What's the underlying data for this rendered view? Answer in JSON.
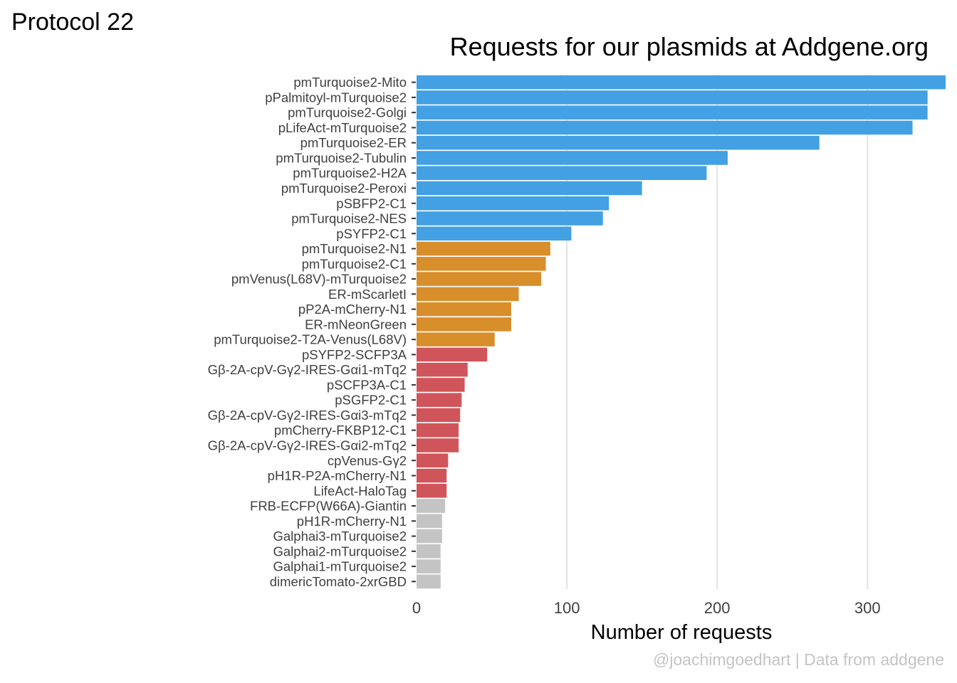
{
  "header": {
    "protocol_label": "Protocol 22"
  },
  "caption": "@joachimgoedhart | Data from addgene",
  "chart_data": {
    "type": "bar",
    "orientation": "horizontal",
    "title": "Requests for our plasmids at Addgene.org",
    "xlabel": "Number of requests",
    "ylabel": "",
    "xlim": [
      0,
      352
    ],
    "xticks": [
      0,
      100,
      200,
      300
    ],
    "grid": "vertical major",
    "legend": "none",
    "categories": [
      "pmTurquoise2-Mito",
      "pPalmitoyl-mTurquoise2",
      "pmTurquoise2-Golgi",
      "pLifeAct-mTurquoise2",
      "pmTurquoise2-ER",
      "pmTurquoise2-Tubulin",
      "pmTurquoise2-H2A",
      "pmTurquoise2-Peroxi",
      "pSBFP2-C1",
      "pmTurquoise2-NES",
      "pSYFP2-C1",
      "pmTurquoise2-N1",
      "pmTurquoise2-C1",
      "pmVenus(L68V)-mTurquoise2",
      "ER-mScarletI",
      "pP2A-mCherry-N1",
      "ER-mNeonGreen",
      "pmTurquoise2-T2A-Venus(L68V)",
      "pSYFP2-SCFP3A",
      "Gβ-2A-cpV-Gγ2-IRES-Gαi1-mTq2",
      "pSCFP3A-C1",
      "pSGFP2-C1",
      "Gβ-2A-cpV-Gγ2-IRES-Gαi3-mTq2",
      "pmCherry-FKBP12-C1",
      "Gβ-2A-cpV-Gγ2-IRES-Gαi2-mTq2",
      "cpVenus-Gγ2",
      "pH1R-P2A-mCherry-N1",
      "LifeAct-HaloTag",
      "FRB-ECFP(W66A)-Giantin",
      "pH1R-mCherry-N1",
      "Galphai3-mTurquoise2",
      "Galphai2-mTurquoise2",
      "Galphai1-mTurquoise2",
      "dimericTomato-2xrGBD"
    ],
    "values": [
      352,
      340,
      340,
      330,
      268,
      207,
      193,
      150,
      128,
      124,
      103,
      89,
      86,
      83,
      68,
      63,
      63,
      52,
      47,
      34,
      32,
      30,
      29,
      28,
      28,
      21,
      20,
      20,
      19,
      17,
      17,
      16,
      16,
      16
    ],
    "groups": [
      1,
      1,
      1,
      1,
      1,
      1,
      1,
      1,
      1,
      1,
      1,
      2,
      2,
      2,
      2,
      2,
      2,
      2,
      3,
      3,
      3,
      3,
      3,
      3,
      3,
      3,
      3,
      3,
      4,
      4,
      4,
      4,
      4,
      4
    ],
    "colors": {
      "1": "#42a0e3",
      "2": "#d98e2c",
      "3": "#d0555a",
      "4": "#c4c4c4"
    },
    "colors_note_omitted": ""
  }
}
